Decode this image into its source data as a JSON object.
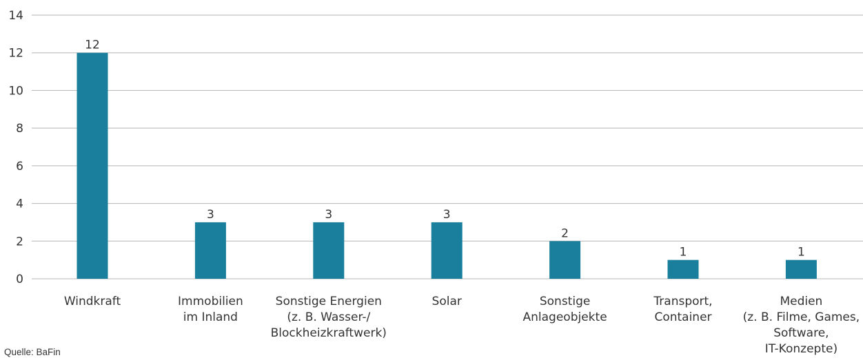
{
  "chart_data": {
    "type": "bar",
    "title": "",
    "xlabel": "",
    "ylabel": "",
    "ylim": [
      0,
      14
    ],
    "yticks": [
      0,
      2,
      4,
      6,
      8,
      10,
      12,
      14
    ],
    "grid": true,
    "categories": [
      "Windkraft",
      "Immobilien\nim Inland",
      "Sonstige Energien\n(z. B. Wasser-/\nBlockheizkraftwerk)",
      "Solar",
      "Sonstige\nAnlageobjekte",
      "Transport,\nContainer",
      "Medien\n(z. B. Filme, Games,\nSoftware,\nIT-Konzepte)"
    ],
    "values": [
      12,
      3,
      3,
      3,
      2,
      1,
      1
    ],
    "data_labels": [
      "12",
      "3",
      "3",
      "3",
      "2",
      "1",
      "1"
    ],
    "bar_color": "#1a7f9c",
    "grid_color": "#b5b5b5"
  },
  "source": "Quelle: BaFin"
}
